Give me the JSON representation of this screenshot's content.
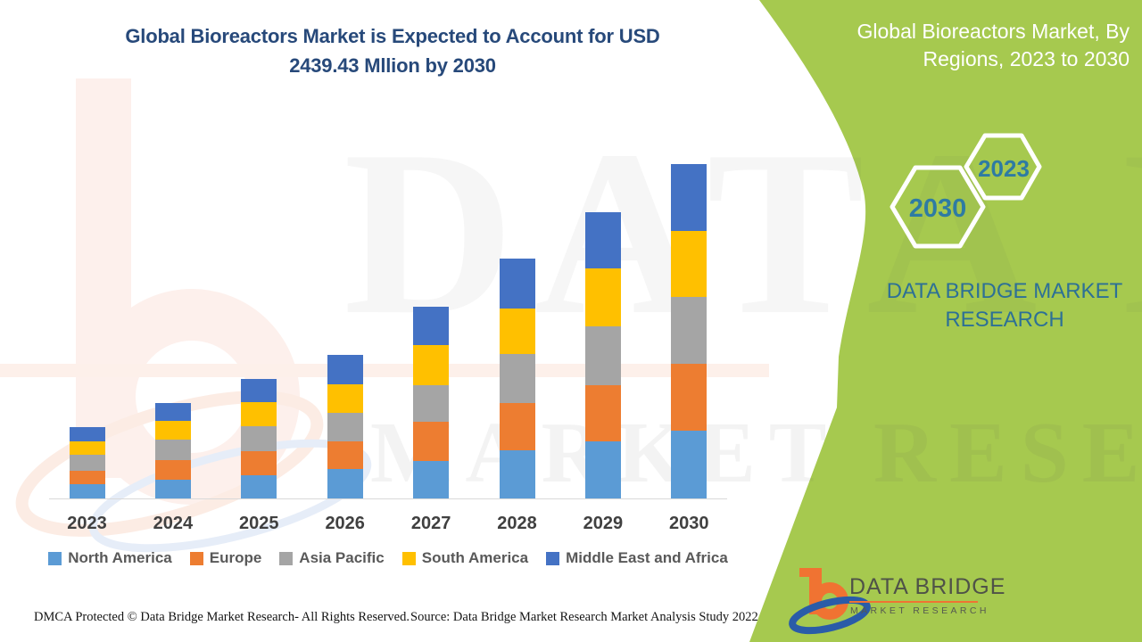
{
  "title": {
    "line1": "Global Bioreactors Market is Expected to Account for USD",
    "line2": "2439.43 Mllion by 2030",
    "color": "#27497a"
  },
  "side_panel": {
    "bg_color": "#a6c94f",
    "title_line1": "Global Bioreactors Market, By",
    "title_line2": "Regions, 2023 to 2030",
    "hexagon_back_label": "2030",
    "hexagon_front_label": "2023",
    "brand_line1": "DATA BRIDGE MARKET",
    "brand_line2": "RESEARCH",
    "brand_color": "#2d7096"
  },
  "chart_data": {
    "type": "bar",
    "stacked": true,
    "unit": "USD Million",
    "title": "Global Bioreactors Market is Expected to Account for USD 2439.43 Mllion by 2030",
    "categories": [
      "2023",
      "2024",
      "2025",
      "2026",
      "2027",
      "2028",
      "2029",
      "2030"
    ],
    "series": [
      {
        "name": "North America",
        "color": "#5b9bd5",
        "values": [
          102,
          134,
          171,
          216,
          275,
          349,
          416,
          492
        ]
      },
      {
        "name": "Europe",
        "color": "#ed7d31",
        "values": [
          98,
          145,
          174,
          200,
          286,
          346,
          412,
          491
        ]
      },
      {
        "name": "Asia Pacific",
        "color": "#a5a5a5",
        "values": [
          119,
          148,
          184,
          210,
          266,
          356,
          427,
          483
        ]
      },
      {
        "name": "South America",
        "color": "#ffc000",
        "values": [
          97,
          140,
          175,
          208,
          289,
          333,
          424,
          487
        ]
      },
      {
        "name": "Middle East and Africa",
        "color": "#4472c4",
        "values": [
          102,
          130,
          167,
          214,
          280,
          362,
          408,
          486.43
        ]
      }
    ],
    "totals": [
      518,
      697,
      871,
      1048,
      1396,
      1746,
      2087,
      2439.43
    ],
    "ylim": [
      0,
      2600
    ],
    "gridlines": false,
    "legend_position": "bottom",
    "xlabel": "",
    "ylabel": ""
  },
  "footer": {
    "left": "DMCA Protected © Data Bridge Market Research- All Rights Reserved.",
    "right": "Source: Data Bridge Market Research Market Analysis Study 2022"
  },
  "logo": {
    "title": "DATA BRIDGE",
    "subtitle": "MARKET RESEARCH",
    "orange": "#f07332",
    "blue": "#2a5ca8"
  },
  "watermark": {
    "line1": "DATA BRIDGE",
    "line2": "MARKET RESEARCH"
  }
}
